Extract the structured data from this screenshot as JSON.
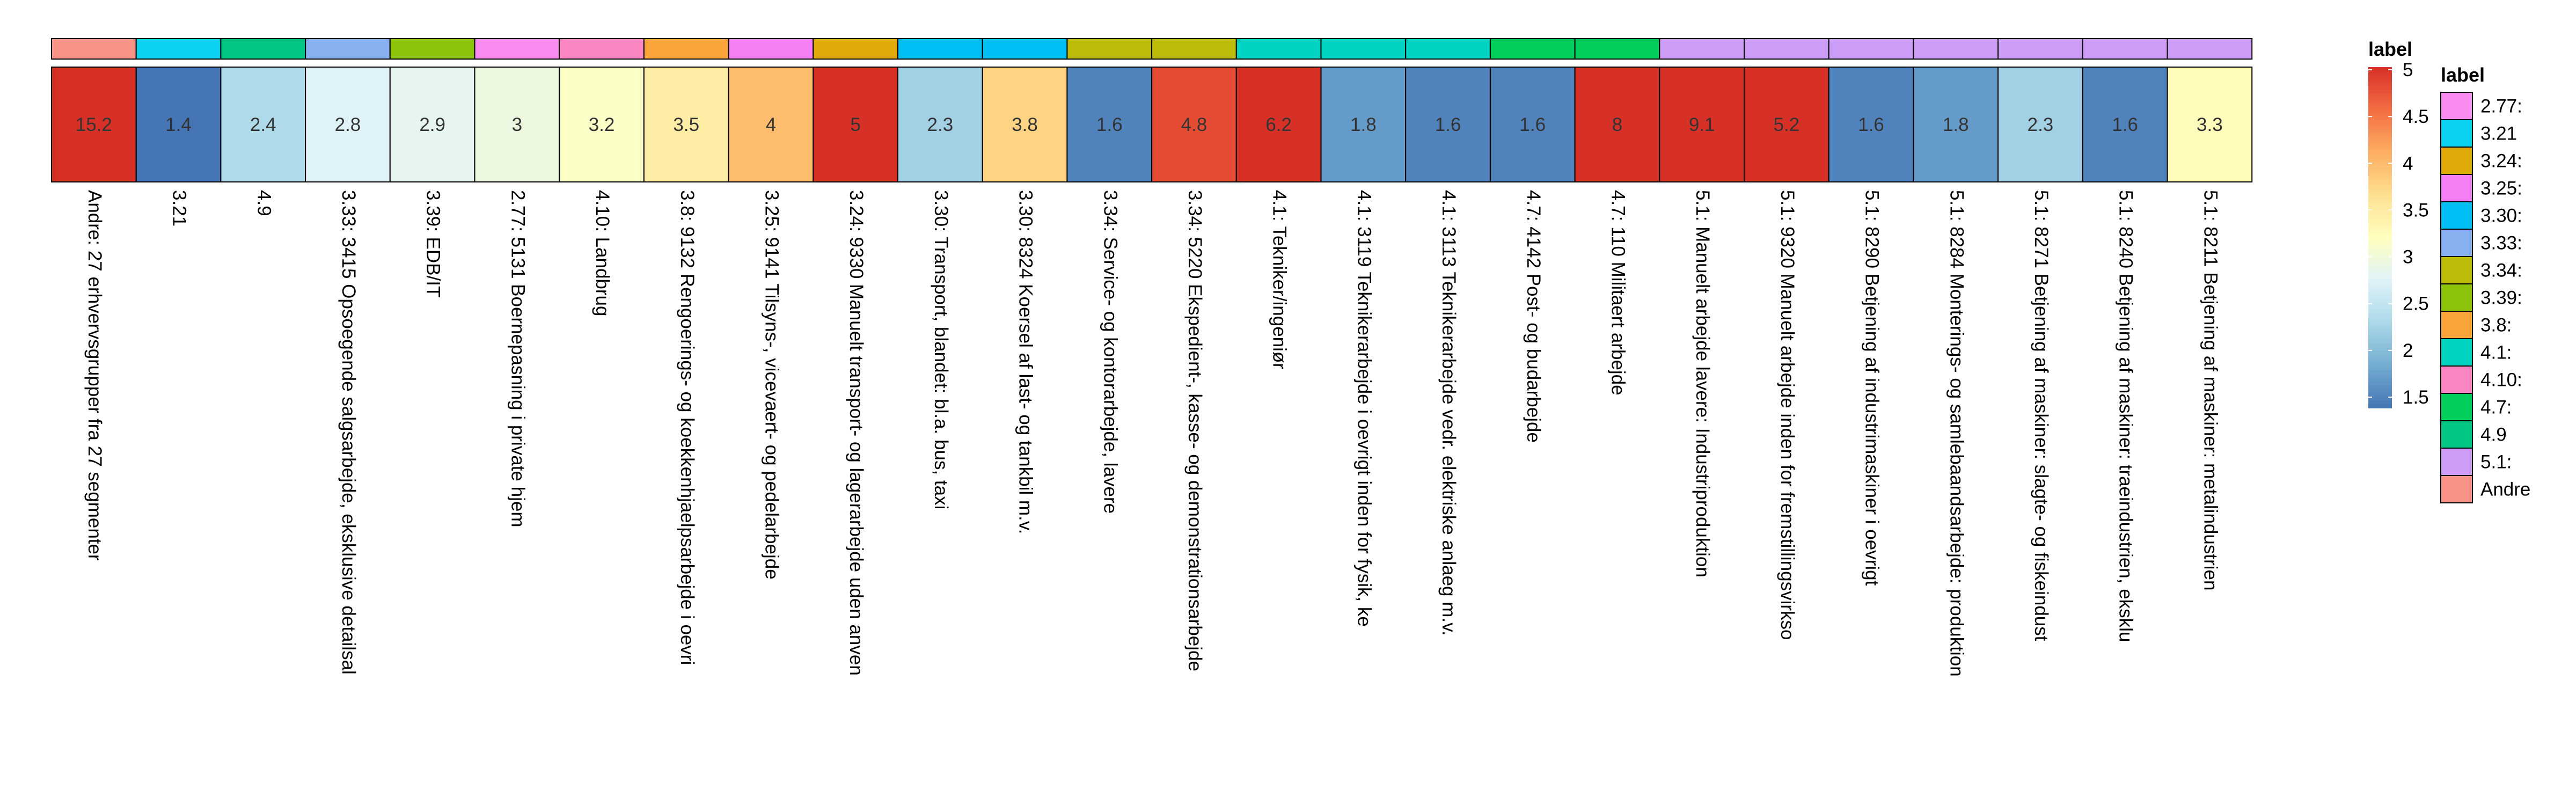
{
  "chart_data": {
    "type": "heatmap",
    "columns": [
      {
        "label": "Andre: 27 erhvervsgrupper fra 27 segmenter",
        "value": 15.2,
        "value_text": "15.2",
        "group": "Andre"
      },
      {
        "label": "3.21",
        "value": 1.4,
        "value_text": "1.4",
        "group": "3.21"
      },
      {
        "label": "4.9",
        "value": 2.4,
        "value_text": "2.4",
        "group": "4.9"
      },
      {
        "label": "3.33: 3415 Opsoegende salgsarbejde, eksklusive detailsal",
        "value": 2.8,
        "value_text": "2.8",
        "group": "3.33:"
      },
      {
        "label": "3.39: EDB/IT",
        "value": 2.9,
        "value_text": "2.9",
        "group": "3.39:"
      },
      {
        "label": "2.77: 5131 Boernepasning i private hjem",
        "value": 3,
        "value_text": "3",
        "group": "2.77:"
      },
      {
        "label": "4.10: Landbrug",
        "value": 3.2,
        "value_text": "3.2",
        "group": "4.10:"
      },
      {
        "label": "3.8: 9132 Rengoerings- og koekkenhjaelpsarbejde i oevri",
        "value": 3.5,
        "value_text": "3.5",
        "group": "3.8:"
      },
      {
        "label": "3.25: 9141 Tilsyns-, vicevaert- og pedelarbejde",
        "value": 4,
        "value_text": "4",
        "group": "3.25:"
      },
      {
        "label": "3.24: 9330 Manuelt transport- og lagerarbejde uden anven",
        "value": 5,
        "value_text": "5",
        "group": "3.24:"
      },
      {
        "label": "3.30: Transport, blandet: bl.a. bus, taxi",
        "value": 2.3,
        "value_text": "2.3",
        "group": "3.30:"
      },
      {
        "label": "3.30: 8324 Koersel af last- og tankbil m.v.",
        "value": 3.8,
        "value_text": "3.8",
        "group": "3.30:"
      },
      {
        "label": "3.34: Service- og kontorarbejde, lavere",
        "value": 1.6,
        "value_text": "1.6",
        "group": "3.34:"
      },
      {
        "label": "3.34: 5220 Ekspedient-, kasse- og demonstrationsarbejde",
        "value": 4.8,
        "value_text": "4.8",
        "group": "3.34:"
      },
      {
        "label": "4.1: Tekniker/ingeniør",
        "value": 6.2,
        "value_text": "6.2",
        "group": "4.1:"
      },
      {
        "label": "4.1: 3119 Teknikerarbejde i oevrigt inden for fysik, ke",
        "value": 1.8,
        "value_text": "1.8",
        "group": "4.1:"
      },
      {
        "label": "4.1: 3113 Teknikerarbejde vedr. elektriske anlaeg m.v.",
        "value": 1.6,
        "value_text": "1.6",
        "group": "4.1:"
      },
      {
        "label": "4.7: 4142 Post- og budarbejde",
        "value": 1.6,
        "value_text": "1.6",
        "group": "4.7:"
      },
      {
        "label": "4.7: 110 Militaert arbejde",
        "value": 8,
        "value_text": "8",
        "group": "4.7:"
      },
      {
        "label": "5.1: Manuelt arbejde lavere: Industriproduktion",
        "value": 9.1,
        "value_text": "9.1",
        "group": "5.1:"
      },
      {
        "label": "5.1: 9320 Manuelt arbejde inden for fremstillingsvirkso",
        "value": 5.2,
        "value_text": "5.2",
        "group": "5.1:"
      },
      {
        "label": "5.1: 8290 Betjening af industrimaskiner i oevrigt",
        "value": 1.6,
        "value_text": "1.6",
        "group": "5.1:"
      },
      {
        "label": "5.1: 8284 Monterings- og samlebaandsarbejde: produktion",
        "value": 1.8,
        "value_text": "1.8",
        "group": "5.1:"
      },
      {
        "label": "5.1: 8271 Betjening af maskiner: slagte- og fiskeindust",
        "value": 2.3,
        "value_text": "2.3",
        "group": "5.1:"
      },
      {
        "label": "5.1: 8240 Betjening af maskiner: traeindustrien, eksklu",
        "value": 1.6,
        "value_text": "1.6",
        "group": "5.1:"
      },
      {
        "label": "5.1: 8211 Betjening af maskiner: metalindustrien",
        "value": 3.3,
        "value_text": "3.3",
        "group": "5.1:"
      }
    ],
    "color_scale": {
      "title": "label",
      "min": 1.5,
      "max": 5,
      "ticks": [
        "5",
        "4.5",
        "4",
        "3.5",
        "3",
        "2.5",
        "2",
        "1.5"
      ],
      "colors": [
        "#d73027",
        "#f46d43",
        "#fdae61",
        "#fee090",
        "#ffffbf",
        "#e0f3f8",
        "#abd9e9",
        "#74add1",
        "#4575b4"
      ]
    },
    "group_legend": {
      "title": "label",
      "entries": [
        {
          "name": "2.77:",
          "color": "#f78bf0"
        },
        {
          "name": "3.21",
          "color": "#08d2ef"
        },
        {
          "name": "3.24:",
          "color": "#e0aa0a"
        },
        {
          "name": "3.25:",
          "color": "#f47ff5"
        },
        {
          "name": "3.30:",
          "color": "#00bff5"
        },
        {
          "name": "3.33:",
          "color": "#86b0ef"
        },
        {
          "name": "3.34:",
          "color": "#bcbc08"
        },
        {
          "name": "3.39:",
          "color": "#8ec30c"
        },
        {
          "name": "3.8:",
          "color": "#fca43c"
        },
        {
          "name": "4.1:",
          "color": "#00d4c0"
        },
        {
          "name": "4.10:",
          "color": "#fb86c1"
        },
        {
          "name": "4.7:",
          "color": "#00cf5c"
        },
        {
          "name": "4.9",
          "color": "#00c784"
        },
        {
          "name": "5.1:",
          "color": "#cc9df6"
        },
        {
          "name": "Andre",
          "color": "#f99387"
        }
      ]
    }
  }
}
